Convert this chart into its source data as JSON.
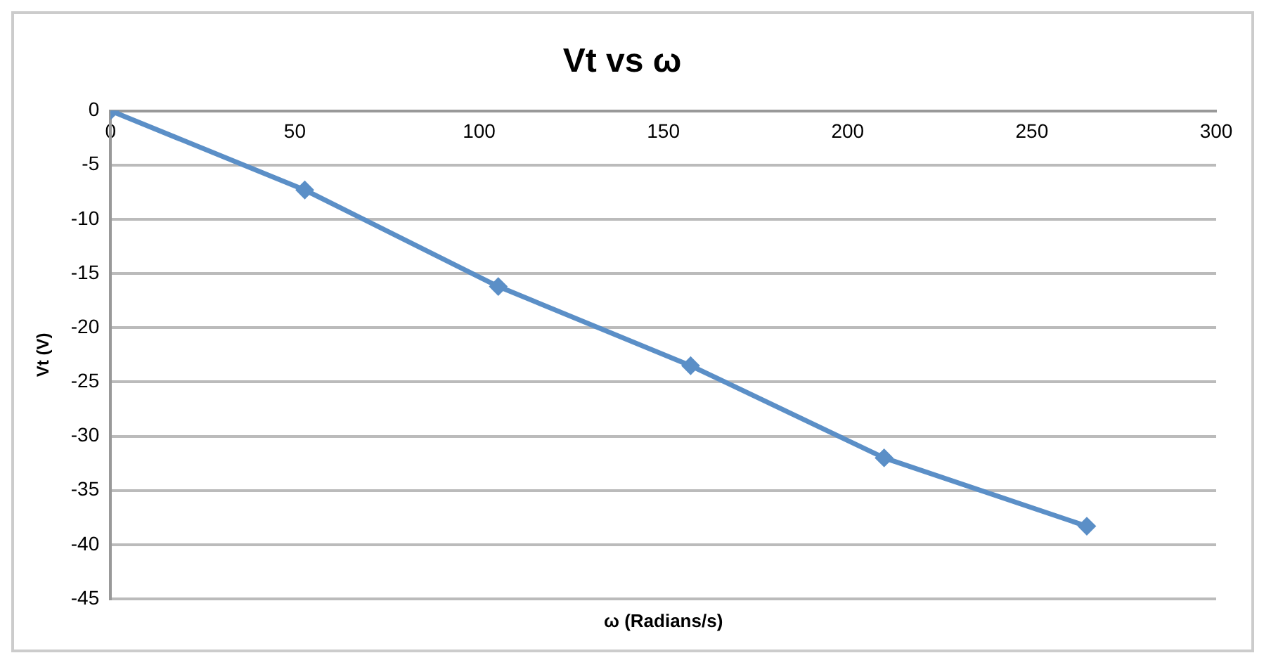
{
  "chart_data": {
    "type": "line",
    "title": "Vt vs ω",
    "xlabel": "ω (Radians/s)",
    "ylabel": "Vt (V)",
    "x": [
      0,
      52.7,
      105.2,
      157.4,
      209.9,
      264.9
    ],
    "series": [
      {
        "color": "#5b8fc7",
        "values": [
          0,
          -7.3,
          -16.2,
          -23.5,
          -32.0,
          -38.3
        ]
      }
    ],
    "xlim": [
      0,
      300
    ],
    "xticks": [
      0,
      50,
      100,
      150,
      200,
      250,
      300
    ],
    "ylim": [
      -45,
      0
    ],
    "yticks": [
      0,
      -5,
      -10,
      -15,
      -20,
      -25,
      -30,
      -35,
      -40,
      -45
    ],
    "grid": "y",
    "legend": false,
    "marker": "diamond",
    "line_style": "solid"
  }
}
